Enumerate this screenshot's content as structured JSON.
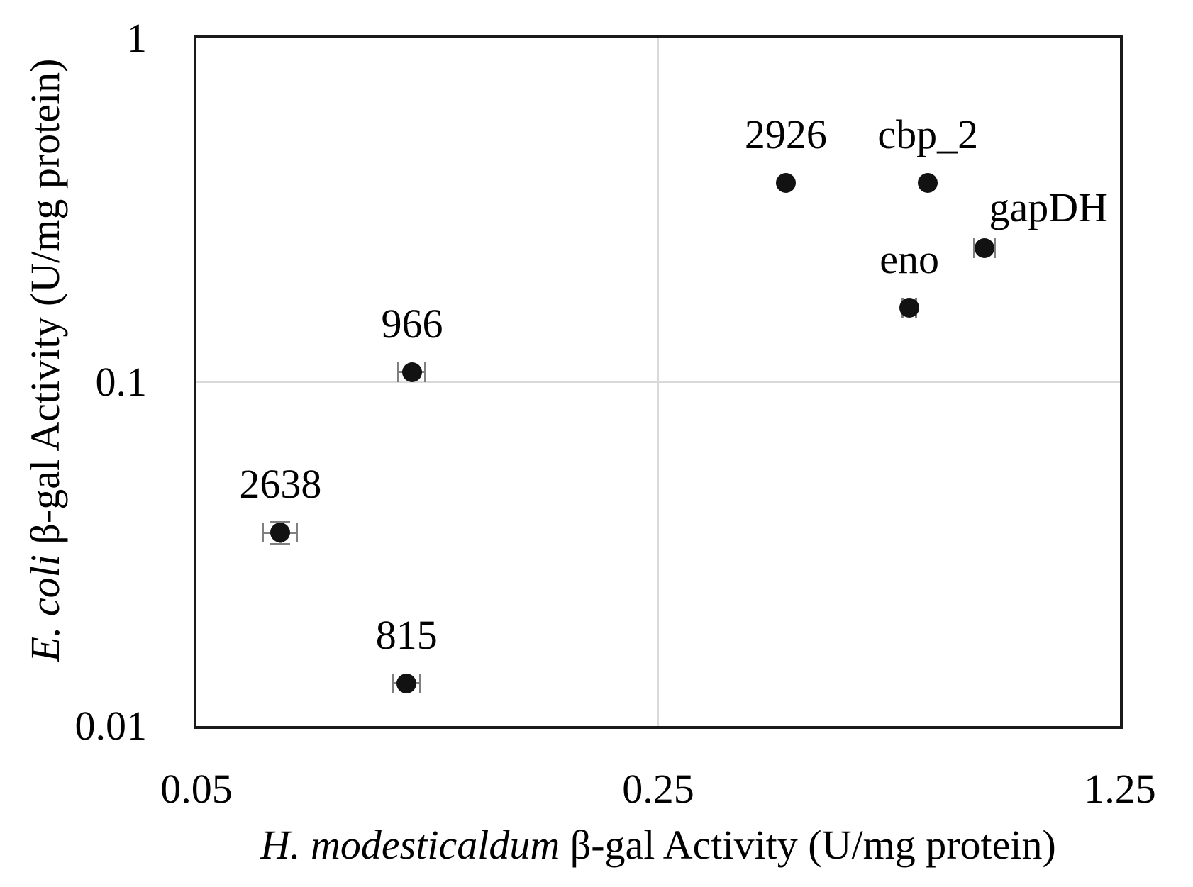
{
  "figure": {
    "background": "#ffffff"
  },
  "chart_data": {
    "type": "scatter",
    "title": "",
    "xlabel_italic": "H. modesticaldum",
    "xlabel_rest": "β-gal Activity (U/mg protein)",
    "ylabel_italic": "E. coli",
    "ylabel_rest": "β-gal Activity (U/mg protein)",
    "x_scale": "log",
    "y_scale": "log",
    "xlim": [
      0.05,
      1.25
    ],
    "ylim": [
      0.01,
      1
    ],
    "x_ticks": [
      {
        "value": 0.05,
        "label": "0.05"
      },
      {
        "value": 0.25,
        "label": "0.25"
      },
      {
        "value": 1.25,
        "label": "1.25"
      }
    ],
    "y_ticks": [
      {
        "value": 1,
        "label": "1"
      },
      {
        "value": 0.1,
        "label": "0.1"
      },
      {
        "value": 0.01,
        "label": "0.01"
      }
    ],
    "gridlines": {
      "x": [
        0.25
      ],
      "y": [
        0.1
      ]
    },
    "legend": "none",
    "marker_shape": "filled-circle",
    "points": [
      {
        "label": "2926",
        "x": 0.39,
        "y": 0.38
      },
      {
        "label": "cbp_2",
        "x": 0.64,
        "y": 0.38
      },
      {
        "label": "gapDH",
        "x": 0.78,
        "y": 0.245,
        "ex": 0.028,
        "label_dx": 90,
        "label_dy": -57
      },
      {
        "label": "eno",
        "x": 0.6,
        "y": 0.165,
        "ex": 0.014
      },
      {
        "label": "966",
        "x": 0.106,
        "y": 0.107,
        "ex": 0.005
      },
      {
        "label": "2638",
        "x": 0.067,
        "y": 0.0365,
        "ex": 0.004,
        "ey": 0.0027
      },
      {
        "label": "815",
        "x": 0.104,
        "y": 0.0133,
        "ex": 0.005
      }
    ],
    "colors": {
      "marker": "#121212",
      "error_bar": "#7f7f7f",
      "gridline": "#d9d9d9",
      "axis_border": "#1a1a1a",
      "text": "#000000",
      "background": "#ffffff"
    }
  }
}
